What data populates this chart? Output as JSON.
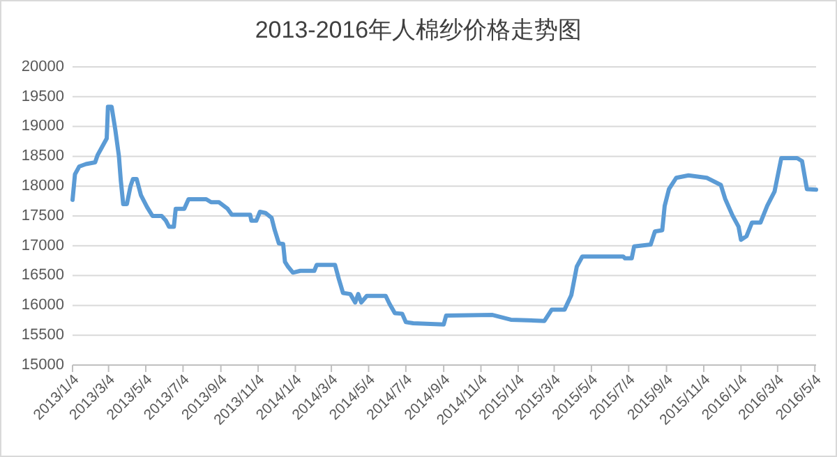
{
  "chart_data": {
    "type": "line",
    "title": "2013-2016年人棉纱价格走势图",
    "x": [
      "2013-01-04",
      "2013-01-08",
      "2013-01-15",
      "2013-01-26",
      "2013-02-10",
      "2013-02-14",
      "2013-03-01",
      "2013-03-03",
      "2013-03-09",
      "2013-03-15",
      "2013-03-21",
      "2013-03-24",
      "2013-03-28",
      "2013-04-03",
      "2013-04-09",
      "2013-04-13",
      "2013-04-19",
      "2013-04-26",
      "2013-05-06",
      "2013-05-15",
      "2013-05-30",
      "2013-06-06",
      "2013-06-11",
      "2013-06-19",
      "2013-06-22",
      "2013-07-06",
      "2013-07-13",
      "2013-08-11",
      "2013-08-19",
      "2013-09-01",
      "2013-09-15",
      "2013-09-22",
      "2013-10-22",
      "2013-10-24",
      "2013-11-01",
      "2013-11-07",
      "2013-11-16",
      "2013-11-26",
      "2013-12-01",
      "2013-12-08",
      "2013-12-15",
      "2013-12-18",
      "2013-12-23",
      "2013-12-31",
      "2014-01-12",
      "2014-02-04",
      "2014-02-08",
      "2014-03-10",
      "2014-03-16",
      "2014-03-23",
      "2014-04-04",
      "2014-04-12",
      "2014-04-17",
      "2014-04-22",
      "2014-05-01",
      "2014-06-01",
      "2014-06-07",
      "2014-06-16",
      "2014-06-28",
      "2014-07-04",
      "2014-07-16",
      "2014-09-04",
      "2014-09-08",
      "2014-11-23",
      "2014-12-23",
      "2015-02-16",
      "2015-02-28",
      "2015-03-21",
      "2015-04-01",
      "2015-04-10",
      "2015-04-19",
      "2015-06-25",
      "2015-06-28",
      "2015-07-09",
      "2015-07-13",
      "2015-08-09",
      "2015-08-16",
      "2015-08-28",
      "2015-09-01",
      "2015-09-08",
      "2015-09-20",
      "2015-10-10",
      "2015-11-09",
      "2015-12-02",
      "2015-12-09",
      "2015-12-21",
      "2015-12-31",
      "2016-01-04",
      "2016-01-13",
      "2016-01-22",
      "2016-02-05",
      "2016-02-16",
      "2016-02-28",
      "2016-03-10",
      "2016-04-05",
      "2016-04-13",
      "2016-04-21",
      "2016-05-06"
    ],
    "series": [
      {
        "color": "#5b9bd5",
        "values": [
          17770,
          18200,
          18330,
          18370,
          18400,
          18520,
          18800,
          19330,
          19330,
          18950,
          18500,
          18100,
          17700,
          17700,
          18000,
          18120,
          18120,
          17850,
          17650,
          17500,
          17500,
          17420,
          17320,
          17320,
          17620,
          17620,
          17780,
          17780,
          17730,
          17730,
          17620,
          17520,
          17520,
          17420,
          17420,
          17570,
          17550,
          17470,
          17270,
          17040,
          17030,
          16730,
          16650,
          16550,
          16580,
          16580,
          16680,
          16680,
          16450,
          16210,
          16190,
          16050,
          16190,
          16050,
          16160,
          16160,
          16030,
          15870,
          15860,
          15720,
          15700,
          15680,
          15830,
          15840,
          15760,
          15740,
          15930,
          15930,
          16170,
          16650,
          16820,
          16820,
          16790,
          16790,
          16990,
          17020,
          17240,
          17260,
          17670,
          17950,
          18140,
          18180,
          18140,
          18020,
          17790,
          17510,
          17320,
          17100,
          17160,
          17390,
          17390,
          17670,
          17910,
          18470,
          18470,
          18420,
          17950,
          17940
        ]
      }
    ],
    "xlim": [
      "2013-01-04",
      "2016-05-06"
    ],
    "xticks": [
      {
        "value": "2013-01-04",
        "label": "2013/1/4"
      },
      {
        "value": "2013-03-04",
        "label": "2013/3/4"
      },
      {
        "value": "2013-05-04",
        "label": "2013/5/4"
      },
      {
        "value": "2013-07-04",
        "label": "2013/7/4"
      },
      {
        "value": "2013-09-04",
        "label": "2013/9/4"
      },
      {
        "value": "2013-11-04",
        "label": "2013/11/4"
      },
      {
        "value": "2014-01-04",
        "label": "2014/1/4"
      },
      {
        "value": "2014-03-04",
        "label": "2014/3/4"
      },
      {
        "value": "2014-05-04",
        "label": "2014/5/4"
      },
      {
        "value": "2014-07-04",
        "label": "2014/7/4"
      },
      {
        "value": "2014-09-04",
        "label": "2014/9/4"
      },
      {
        "value": "2014-11-04",
        "label": "2014/11/4"
      },
      {
        "value": "2015-01-04",
        "label": "2015/1/4"
      },
      {
        "value": "2015-03-04",
        "label": "2015/3/4"
      },
      {
        "value": "2015-05-04",
        "label": "2015/5/4"
      },
      {
        "value": "2015-07-04",
        "label": "2015/7/4"
      },
      {
        "value": "2015-09-04",
        "label": "2015/9/4"
      },
      {
        "value": "2015-11-04",
        "label": "2015/11/4"
      },
      {
        "value": "2016-01-04",
        "label": "2016/1/4"
      },
      {
        "value": "2016-03-04",
        "label": "2016/3/4"
      },
      {
        "value": "2016-05-04",
        "label": "2016/5/4"
      }
    ],
    "ylim": [
      15000,
      20000
    ],
    "yticks": [
      15000,
      15500,
      16000,
      16500,
      17000,
      17500,
      18000,
      18500,
      19000,
      19500,
      20000
    ],
    "grid": "y",
    "marker": "none",
    "line_style": "solid"
  }
}
